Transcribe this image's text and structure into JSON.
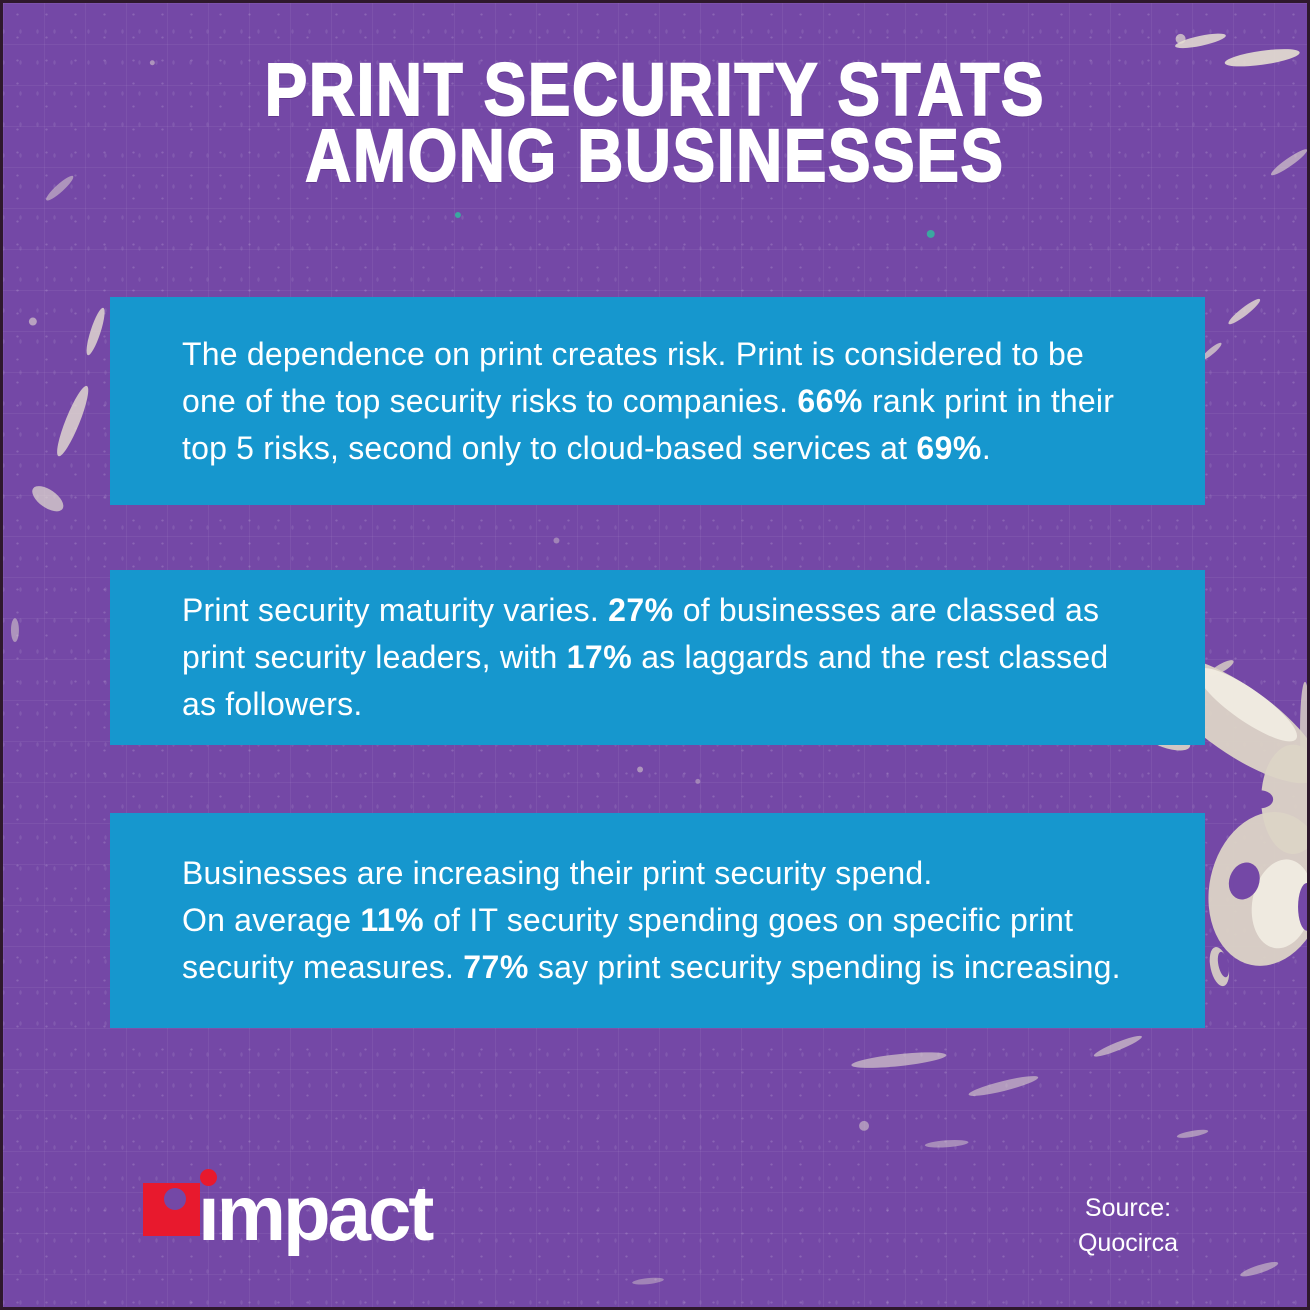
{
  "title": {
    "line1": "PRINT SECURITY STATS",
    "line2": "AMONG BUSINESSES"
  },
  "stats": [
    {
      "segments": [
        {
          "text": "The dependence on print creates risk. Print is considered to be one of the top security risks to companies. "
        },
        {
          "text": "66%",
          "bold": true
        },
        {
          "text": " rank print in their top 5 risks, second only to cloud-based services at "
        },
        {
          "text": "69%",
          "bold": true
        },
        {
          "text": "."
        }
      ]
    },
    {
      "segments": [
        {
          "text": "Print security maturity varies. "
        },
        {
          "text": "27%",
          "bold": true
        },
        {
          "text": " of businesses are classed as print security leaders, with "
        },
        {
          "text": "17%",
          "bold": true
        },
        {
          "text": " as laggards and the rest classed as followers."
        }
      ]
    },
    {
      "segments": [
        {
          "text": "Businesses are increasing their print security spend."
        },
        {
          "br": true
        },
        {
          "text": "On average "
        },
        {
          "text": "11%",
          "bold": true
        },
        {
          "text": " of IT security spending goes on specific print security measures. "
        },
        {
          "text": "77%",
          "bold": true
        },
        {
          "text": " say print security spending is increasing."
        }
      ]
    }
  ],
  "footer": {
    "logo_text": "impact",
    "source_line1": "Source:",
    "source_line2": "Quocirca"
  },
  "colors": {
    "background_purple": "#7448A6",
    "panel_blue": "#1697CE",
    "logo_red": "#E8192D",
    "text_white": "#FFFFFF"
  }
}
